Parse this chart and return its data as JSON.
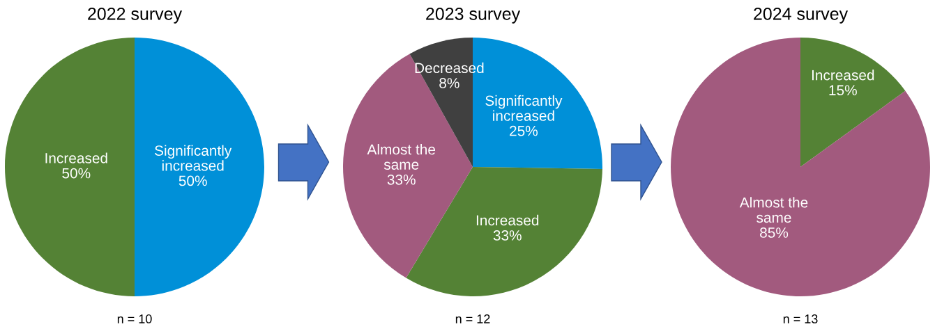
{
  "chart_data": [
    {
      "type": "pie",
      "title": "2022 survey",
      "categories": [
        "Significantly\nincreased",
        "Increased"
      ],
      "values": [
        50,
        50
      ],
      "value_labels": [
        "50%",
        "50%"
      ],
      "colors": [
        "#0090d8",
        "#548235"
      ],
      "annotations": [
        "n = 10"
      ]
    },
    {
      "type": "pie",
      "title": "2023 survey",
      "categories": [
        "Significantly\nincreased",
        "Increased",
        "Almost the\nsame",
        "Decreased"
      ],
      "values": [
        25,
        33,
        33,
        8
      ],
      "value_labels": [
        "25%",
        "33%",
        "33%",
        "8%"
      ],
      "colors": [
        "#0090d8",
        "#548235",
        "#a25a7e",
        "#404040"
      ],
      "annotations": [
        "n = 12"
      ]
    },
    {
      "type": "pie",
      "title": "2024 survey",
      "categories": [
        "Increased",
        "Almost the\nsame"
      ],
      "values": [
        15,
        85
      ],
      "value_labels": [
        "15%",
        "85%"
      ],
      "colors": [
        "#548235",
        "#a25a7e"
      ],
      "annotations": [
        "n = 13"
      ]
    }
  ]
}
